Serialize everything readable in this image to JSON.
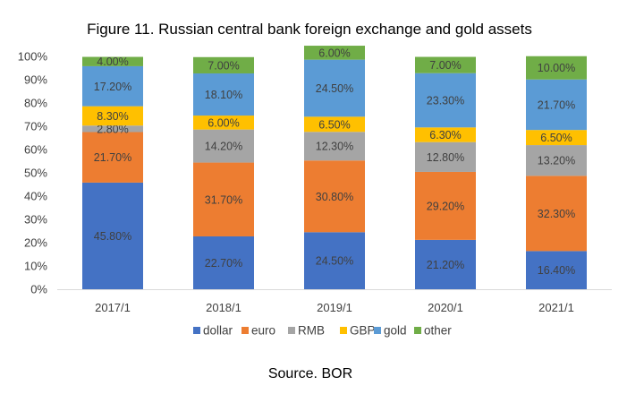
{
  "chart_data": {
    "type": "bar",
    "stacked": true,
    "title": "Figure 11. Russian central bank foreign exchange and gold assets",
    "categories": [
      "2017/1",
      "2018/1",
      "2019/1",
      "2020/1",
      "2021/1"
    ],
    "ylim": [
      0,
      100
    ],
    "y_ticks": [
      "0%",
      "10%",
      "20%",
      "30%",
      "40%",
      "50%",
      "60%",
      "70%",
      "80%",
      "90%",
      "100%"
    ],
    "grid": false,
    "legend_position": "bottom",
    "series": [
      {
        "name": "dollar",
        "color": "#4472C4",
        "label_color": "#404040",
        "values": [
          45.8,
          22.7,
          24.5,
          21.2,
          16.4
        ],
        "labels": [
          "45.80%",
          "22.70%",
          "24.50%",
          "21.20%",
          "16.40%"
        ]
      },
      {
        "name": "euro",
        "color": "#ED7D31",
        "label_color": "#404040",
        "values": [
          21.7,
          31.7,
          30.8,
          29.2,
          32.3
        ],
        "labels": [
          "21.70%",
          "31.70%",
          "30.80%",
          "29.20%",
          "32.30%"
        ]
      },
      {
        "name": "RMB",
        "color": "#A5A5A5",
        "label_color": "#404040",
        "values": [
          2.8,
          14.2,
          12.3,
          12.8,
          13.2
        ],
        "labels": [
          "2.80%",
          "14.20%",
          "12.30%",
          "12.80%",
          "13.20%"
        ]
      },
      {
        "name": "GBP",
        "color": "#FFC000",
        "label_color": "#404040",
        "values": [
          8.3,
          6.0,
          6.5,
          6.3,
          6.5
        ],
        "labels": [
          "8.30%",
          "6.00%",
          "6.50%",
          "6.30%",
          "6.50%"
        ]
      },
      {
        "name": "gold",
        "color": "#5B9BD5",
        "label_color": "#404040",
        "values": [
          17.2,
          18.1,
          24.5,
          23.3,
          21.7
        ],
        "labels": [
          "17.20%",
          "18.10%",
          "24.50%",
          "23.30%",
          "21.70%"
        ]
      },
      {
        "name": "other",
        "color": "#70AD47",
        "label_color": "#404040",
        "values": [
          4.0,
          7.0,
          6.0,
          7.0,
          10.0
        ],
        "labels": [
          "4.00%",
          "7.00%",
          "6.00%",
          "7.00%",
          "10.00%"
        ]
      }
    ]
  },
  "source": "Source. BOR"
}
